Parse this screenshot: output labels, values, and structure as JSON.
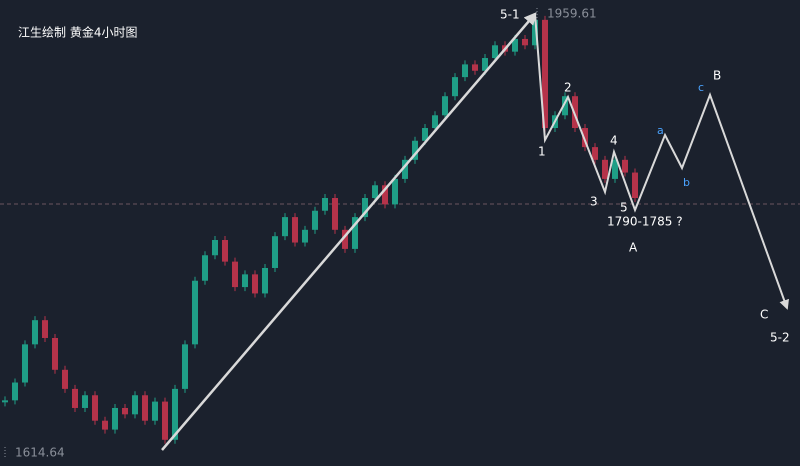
{
  "chart_data": {
    "type": "candlestick",
    "title": "江生绘制  黄金4小时图",
    "ylim": [
      1604.4,
      1970.6
    ],
    "xlim": [
      0,
      160
    ],
    "up_color": "#1f9e86",
    "down_color": "#b5334a",
    "values": [
      1656,
      1670,
      1700,
      1719,
      1705,
      1680,
      1665,
      1650,
      1660,
      1640,
      1633,
      1650,
      1645,
      1660,
      1640,
      1655,
      1625,
      1665,
      1700,
      1750,
      1770,
      1782,
      1765,
      1745,
      1755,
      1740,
      1760,
      1785,
      1800,
      1780,
      1790,
      1805,
      1815,
      1790,
      1775,
      1800,
      1815,
      1825,
      1810,
      1830,
      1845,
      1860,
      1870,
      1880,
      1895,
      1910,
      1920,
      1915,
      1925,
      1935,
      1930,
      1940,
      1935,
      1955,
      1870,
      1880,
      1895,
      1870,
      1855,
      1845,
      1830,
      1845,
      1835,
      1815
    ],
    "price_marks": [
      1959.61,
      1614.64
    ],
    "current_price": 1810.3,
    "impulse": {
      "x": [
        32.4,
        107
      ],
      "values": [
        1617.0,
        1959.6
      ]
    },
    "projection": {
      "x": [
        107,
        109,
        113.6,
        121,
        122.8,
        127,
        133,
        136.4,
        142,
        157.4
      ],
      "values": [
        1959.6,
        1860.6,
        1894.4,
        1819.7,
        1851.2,
        1805.6,
        1864.5,
        1838.6,
        1896.0,
        1728.6
      ]
    },
    "wave_labels": [
      "5-1",
      "1",
      "2",
      "3",
      "4",
      "5",
      "1790-1785 ?",
      "A",
      "a",
      "b",
      "c",
      "B",
      "C",
      "5-2"
    ]
  }
}
